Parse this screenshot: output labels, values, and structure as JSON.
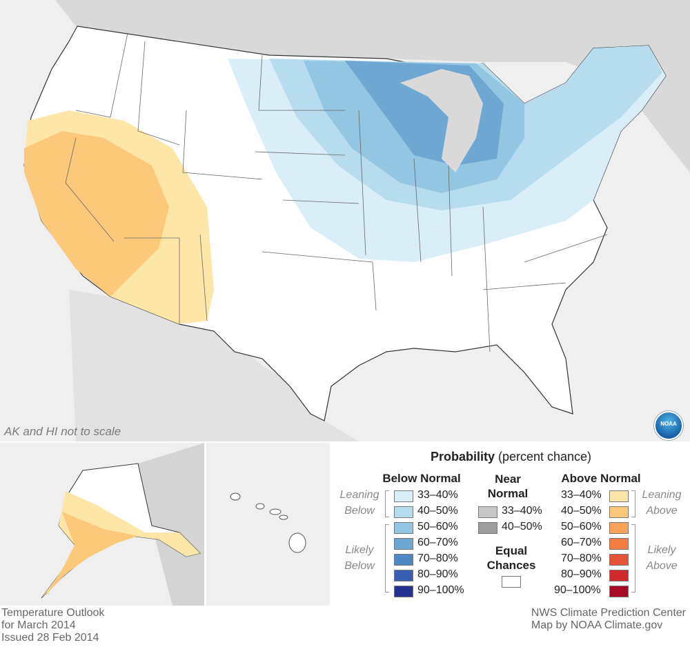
{
  "map": {
    "scale_note": "AK and HI not to scale",
    "logo_text": "NOAA"
  },
  "legend": {
    "title_bold": "Probability",
    "title_rest": "(percent chance)",
    "below": {
      "heading": "Below Normal",
      "leaning": "Leaning Below",
      "likely": "Likely Below",
      "items": [
        {
          "label": "33–40%",
          "color": "#d9eef7"
        },
        {
          "label": "40–50%",
          "color": "#b7dcee"
        },
        {
          "label": "50–60%",
          "color": "#93c6e2"
        },
        {
          "label": "60–70%",
          "color": "#6fa7d3"
        },
        {
          "label": "70–80%",
          "color": "#4f86c4"
        },
        {
          "label": "80–90%",
          "color": "#3960b0"
        },
        {
          "label": "90–100%",
          "color": "#26328f"
        }
      ]
    },
    "near": {
      "heading_line1": "Near",
      "heading_line2": "Normal",
      "items": [
        {
          "label": "33–40%",
          "color": "#c8c8c8"
        },
        {
          "label": "40–50%",
          "color": "#9e9e9e"
        }
      ],
      "equal_line1": "Equal",
      "equal_line2": "Chances",
      "equal_color": "#ffffff"
    },
    "above": {
      "heading": "Above Normal",
      "leaning": "Leaning Above",
      "likely": "Likely Above",
      "items": [
        {
          "label": "33–40%",
          "color": "#fde6a8"
        },
        {
          "label": "40–50%",
          "color": "#fcc97a"
        },
        {
          "label": "50–60%",
          "color": "#f9a25a"
        },
        {
          "label": "60–70%",
          "color": "#f47d43"
        },
        {
          "label": "70–80%",
          "color": "#e65336"
        },
        {
          "label": "80–90%",
          "color": "#d02a2a"
        },
        {
          "label": "90–100%",
          "color": "#a80b27"
        }
      ]
    }
  },
  "footer": {
    "left_line1": "Temperature Outlook",
    "left_line2": "for March 2014",
    "left_line3": "Issued 28 Feb 2014",
    "right_line1": "NWS Climate Prediction Center",
    "right_line2": "Map by NOAA Climate.gov"
  }
}
